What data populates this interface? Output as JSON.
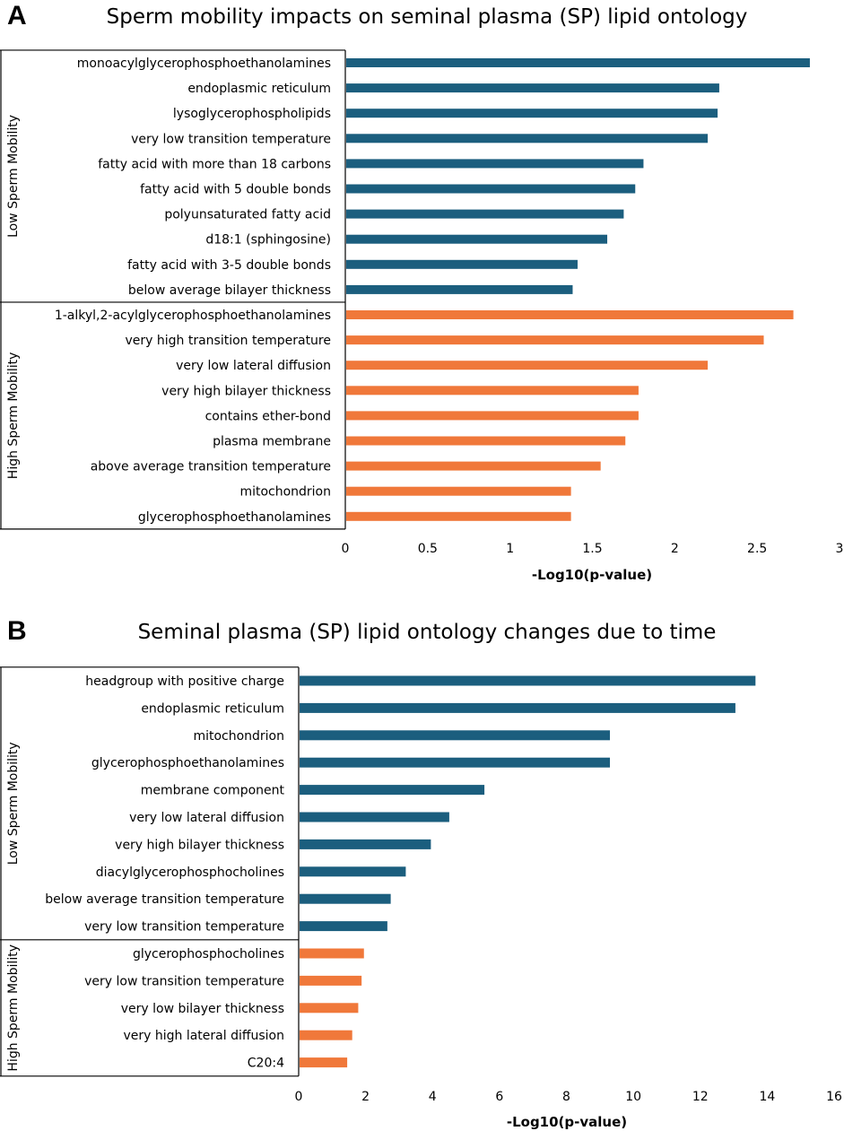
{
  "chart_data": [
    {
      "panel": "A",
      "type": "bar",
      "orientation": "horizontal",
      "title": "Sperm mobility impacts on seminal plasma (SP) lipid ontology",
      "xlabel": "-Log10(p-value)",
      "ylabel": "",
      "xlim": [
        0,
        3
      ],
      "xticks": [
        "0",
        "0.5",
        "1",
        "1.5",
        "2",
        "2.5",
        "3"
      ],
      "xtick_values": [
        0,
        0.5,
        1,
        1.5,
        2,
        2.5,
        3
      ],
      "grid": false,
      "groups": [
        {
          "name": "Low Sperm Mobility",
          "color": "#1B5E7E",
          "categories": [
            "monoacylglycerophosphoethanolamines",
            "endoplasmic reticulum",
            "lysoglycerophospholipids",
            "very low transition temperature",
            "fatty acid with more than 18 carbons",
            "fatty acid with 5 double bonds",
            "polyunsaturated fatty acid",
            "d18:1 (sphingosine)",
            "fatty acid with 3-5 double bonds",
            "below average bilayer thickness"
          ],
          "values": [
            2.82,
            2.27,
            2.26,
            2.2,
            1.81,
            1.76,
            1.69,
            1.59,
            1.41,
            1.38
          ]
        },
        {
          "name": "High Sperm Mobility",
          "color": "#F0783A",
          "categories": [
            "1-alkyl,2-acylglycerophosphoethanolamines",
            "very high transition temperature",
            "very low lateral diffusion",
            "very high bilayer thickness",
            "contains ether-bond",
            "plasma membrane",
            "above average transition temperature",
            "mitochondrion",
            "glycerophosphoethanolamines"
          ],
          "values": [
            2.72,
            2.54,
            2.2,
            1.78,
            1.78,
            1.7,
            1.55,
            1.37,
            1.37
          ]
        }
      ]
    },
    {
      "panel": "B",
      "type": "bar",
      "orientation": "horizontal",
      "title": "Seminal plasma (SP) lipid ontology changes due to time",
      "xlabel": "-Log10(p-value)",
      "ylabel": "",
      "xlim": [
        0,
        16
      ],
      "xticks": [
        "0",
        "2",
        "4",
        "6",
        "8",
        "10",
        "12",
        "14",
        "16"
      ],
      "xtick_values": [
        0,
        2,
        4,
        6,
        8,
        10,
        12,
        14,
        16
      ],
      "grid": false,
      "groups": [
        {
          "name": "Low Sperm Mobility",
          "color": "#1B5E7E",
          "categories": [
            "headgroup with positive charge",
            "endoplasmic reticulum",
            "mitochondrion",
            "glycerophosphoethanolamines",
            "membrane component",
            "very low lateral diffusion",
            "very high bilayer thickness",
            "diacylglycerophosphocholines",
            "below average transition temperature",
            "very low transition temperature"
          ],
          "values": [
            13.65,
            13.05,
            9.3,
            9.3,
            5.55,
            4.5,
            3.95,
            3.2,
            2.75,
            2.65
          ]
        },
        {
          "name": "High Sperm Mobility",
          "color": "#F0783A",
          "categories": [
            "glycerophosphocholines",
            "very low transition temperature",
            "very low bilayer thickness",
            "very high lateral diffusion",
            "C20:4"
          ],
          "values": [
            1.95,
            1.88,
            1.78,
            1.6,
            1.45
          ]
        }
      ]
    }
  ]
}
